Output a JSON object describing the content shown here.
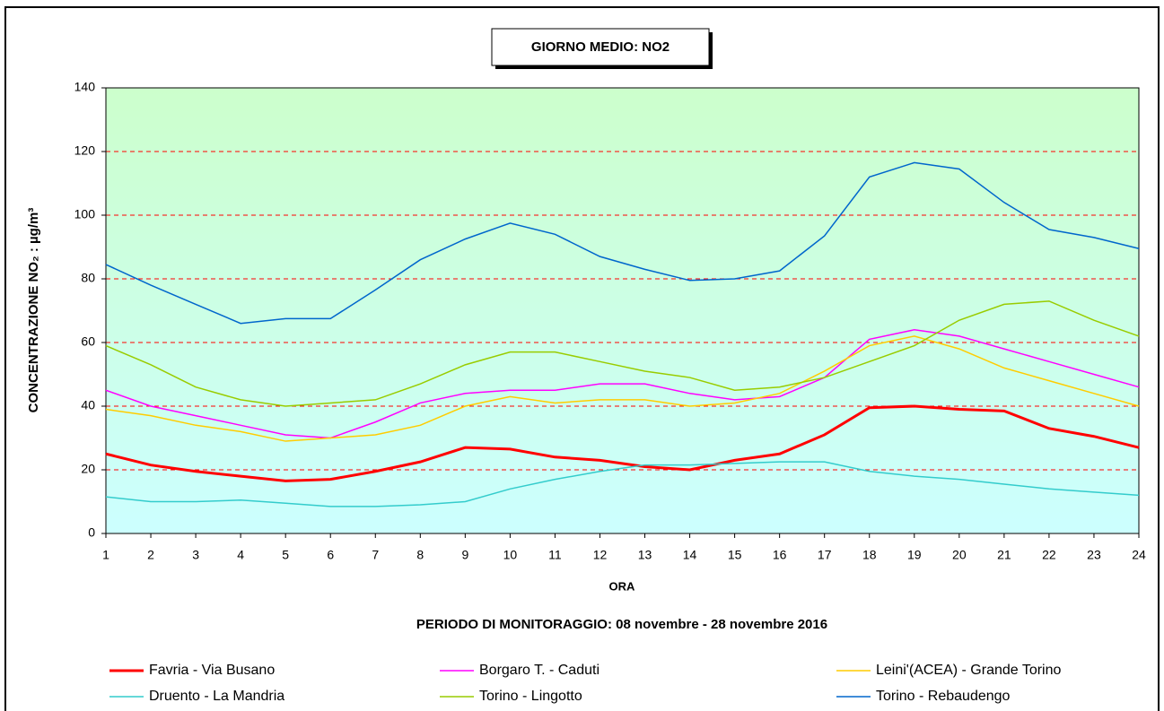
{
  "chart_data": {
    "type": "line",
    "title": "GIORNO MEDIO: NO2",
    "subtitle": "PERIODO DI MONITORAGGIO: 08 novembre - 28 novembre 2016",
    "x_label": "ORA",
    "y_label": "CONCENTRAZIONE NO₂ :  µg/m³",
    "categories": [
      "1",
      "2",
      "3",
      "4",
      "5",
      "6",
      "7",
      "8",
      "9",
      "10",
      "11",
      "12",
      "13",
      "14",
      "15",
      "16",
      "17",
      "18",
      "19",
      "20",
      "21",
      "22",
      "23",
      "24"
    ],
    "series": [
      {
        "name": "Favria - Via Busano",
        "color": "#ff0000",
        "values": [
          25,
          21.5,
          19.5,
          18,
          16.5,
          17,
          19.5,
          22.5,
          27,
          26.5,
          24,
          23,
          21,
          20,
          23,
          25,
          31,
          39.5,
          40,
          39,
          38.5,
          33,
          30.5,
          27
        ]
      },
      {
        "name": "Borgaro T. - Caduti",
        "color": "#ff00ff",
        "values": [
          45,
          40,
          37,
          34,
          31,
          30,
          35,
          41,
          44,
          45,
          45,
          47,
          47,
          44,
          42,
          43,
          49,
          61,
          64,
          62,
          58,
          54,
          50,
          46
        ]
      },
      {
        "name": "Leini'(ACEA) - Grande Torino",
        "color": "#ffcc00",
        "values": [
          39,
          37,
          34,
          32,
          29,
          30,
          31,
          34,
          40,
          43,
          41,
          42,
          42,
          40,
          41,
          44,
          51,
          59,
          62,
          58,
          52,
          48,
          44,
          40
        ]
      },
      {
        "name": "Druento - La Mandria",
        "color": "#33cccc",
        "values": [
          11.5,
          10,
          10,
          10.5,
          9.5,
          8.5,
          8.5,
          9,
          10,
          14,
          17,
          19.5,
          21.5,
          21.5,
          22,
          22.5,
          22.5,
          19.5,
          18,
          17,
          15.5,
          14,
          13,
          12
        ]
      },
      {
        "name": "Torino - Lingotto",
        "color": "#99cc00",
        "values": [
          59,
          53,
          46,
          42,
          40,
          41,
          42,
          47,
          53,
          57,
          57,
          54,
          51,
          49,
          45,
          46,
          49,
          54,
          59,
          67,
          72,
          73,
          67,
          62
        ]
      },
      {
        "name": "Torino - Rebaudengo",
        "color": "#0066cc",
        "values": [
          84.5,
          78,
          72,
          66,
          67.5,
          67.5,
          76.5,
          86,
          92.5,
          97.5,
          94,
          87,
          83,
          79.5,
          80,
          82.5,
          93.5,
          112,
          116.5,
          114.5,
          104,
          95.5,
          93,
          89.5
        ]
      }
    ],
    "ylim": [
      0,
      140
    ],
    "yticks": [
      0,
      20,
      40,
      60,
      80,
      100,
      120,
      140
    ],
    "grid": true
  }
}
